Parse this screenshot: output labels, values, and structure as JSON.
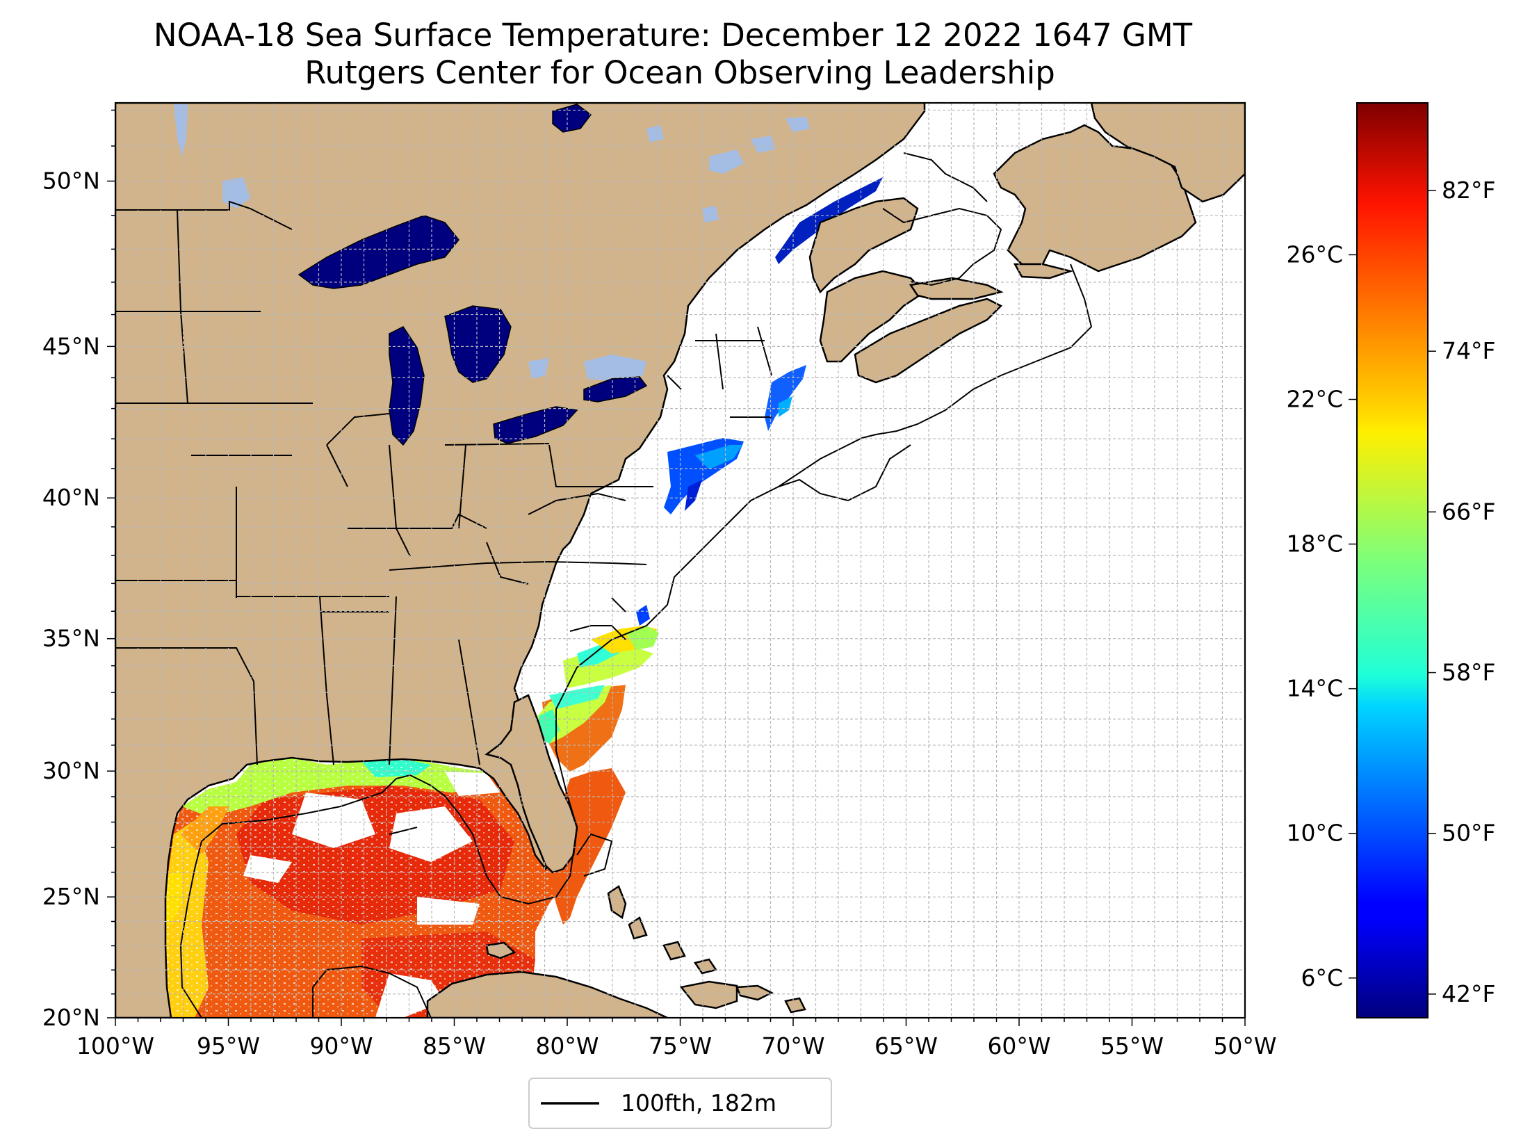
{
  "title": "NOAA-18 Sea Surface Temperature: December 12 2022 1647 GMT",
  "subtitle": "Rutgers Center for Ocean Observing Leadership",
  "map": {
    "lon_range": [
      -100,
      -50
    ],
    "lat_range": [
      20,
      52.2
    ],
    "lon_ticks": [
      "100°W",
      "95°W",
      "90°W",
      "85°W",
      "80°W",
      "75°W",
      "70°W",
      "65°W",
      "60°W",
      "55°W",
      "50°W"
    ],
    "lat_ticks": [
      "20°N",
      "25°N",
      "30°N",
      "35°N",
      "40°N",
      "45°N",
      "50°N"
    ],
    "grid": "dashed, 1° spacing",
    "colors": {
      "land": "#d2b48c",
      "ocean_no_data": "#ffffff",
      "inland_water_no_data": "#a4bde5",
      "great_lakes": "#00007f",
      "grid": "#b8b8b8"
    }
  },
  "colorbar": {
    "colormap": "jet",
    "celsius_ticks": [
      "6°C",
      "10°C",
      "14°C",
      "18°C",
      "22°C",
      "26°C"
    ],
    "fahrenheit_ticks": [
      "42°F",
      "50°F",
      "58°F",
      "66°F",
      "74°F",
      "82°F"
    ],
    "range_celsius": [
      4.9,
      30.2
    ]
  },
  "legend": {
    "entries": [
      {
        "label": "100fth, 182m",
        "line_color": "#000000"
      }
    ]
  }
}
